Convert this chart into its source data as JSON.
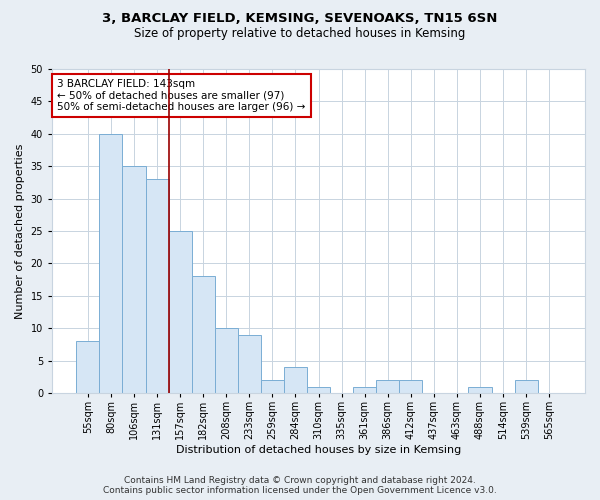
{
  "title1": "3, BARCLAY FIELD, KEMSING, SEVENOAKS, TN15 6SN",
  "title2": "Size of property relative to detached houses in Kemsing",
  "xlabel": "Distribution of detached houses by size in Kemsing",
  "ylabel": "Number of detached properties",
  "categories": [
    "55sqm",
    "80sqm",
    "106sqm",
    "131sqm",
    "157sqm",
    "182sqm",
    "208sqm",
    "233sqm",
    "259sqm",
    "284sqm",
    "310sqm",
    "335sqm",
    "361sqm",
    "386sqm",
    "412sqm",
    "437sqm",
    "463sqm",
    "488sqm",
    "514sqm",
    "539sqm",
    "565sqm"
  ],
  "values": [
    8,
    40,
    35,
    33,
    25,
    18,
    10,
    9,
    2,
    4,
    1,
    0,
    1,
    2,
    2,
    0,
    0,
    1,
    0,
    2,
    0
  ],
  "bar_color": "#d6e6f5",
  "bar_edge_color": "#7aadd4",
  "vline_index": 3,
  "vline_color": "#990000",
  "annotation_lines": [
    "3 BARCLAY FIELD: 143sqm",
    "← 50% of detached houses are smaller (97)",
    "50% of semi-detached houses are larger (96) →"
  ],
  "annotation_box_edgecolor": "#cc0000",
  "ylim": [
    0,
    50
  ],
  "yticks": [
    0,
    5,
    10,
    15,
    20,
    25,
    30,
    35,
    40,
    45,
    50
  ],
  "footer1": "Contains HM Land Registry data © Crown copyright and database right 2024.",
  "footer2": "Contains public sector information licensed under the Open Government Licence v3.0.",
  "bg_color": "#e8eef4",
  "plot_bg_color": "#ffffff",
  "grid_color": "#c8d4e0",
  "title1_fontsize": 9.5,
  "title2_fontsize": 8.5,
  "xlabel_fontsize": 8,
  "ylabel_fontsize": 8,
  "tick_fontsize": 7,
  "annotation_fontsize": 7.5,
  "footer_fontsize": 6.5
}
